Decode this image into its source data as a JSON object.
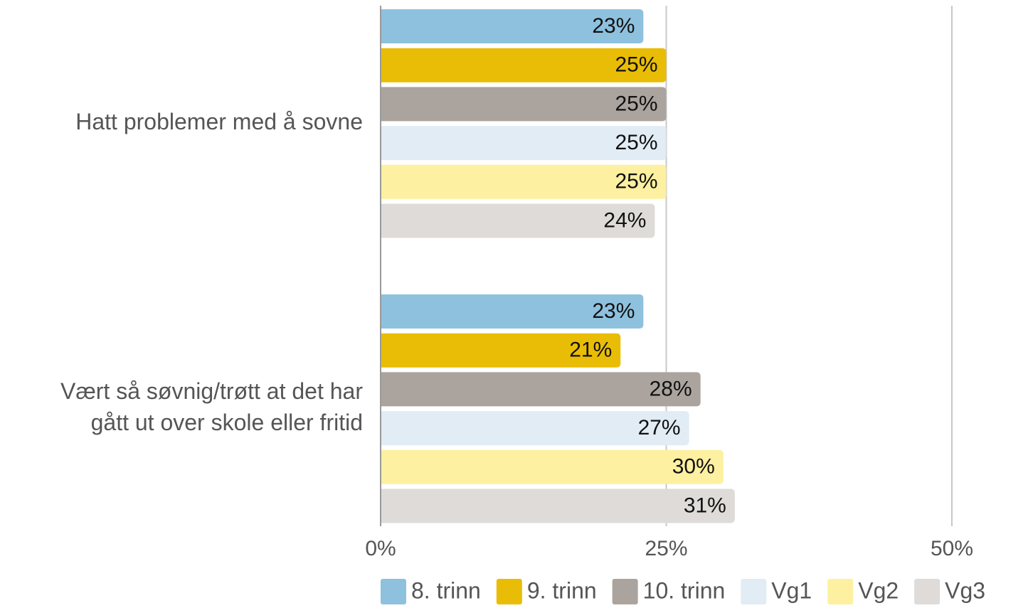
{
  "chart_data": {
    "type": "bar",
    "orientation": "horizontal",
    "categories": [
      [
        "Hatt problemer med å sovne"
      ],
      [
        "Vært så søvnig/trøtt at det har",
        "gått ut over skole eller fritid"
      ]
    ],
    "series": [
      {
        "name": "8. trinn",
        "color": "#8ec1de",
        "values": [
          23,
          23
        ],
        "value_labels": [
          "23%",
          "23%"
        ]
      },
      {
        "name": "9. trinn",
        "color": "#e9bd06",
        "values": [
          25,
          21
        ],
        "value_labels": [
          "25%",
          "21%"
        ]
      },
      {
        "name": "10. trinn",
        "color": "#aba49e",
        "values": [
          25,
          28
        ],
        "value_labels": [
          "25%",
          "28%"
        ]
      },
      {
        "name": "Vg1",
        "color": "#e1ecf5",
        "values": [
          25,
          27
        ],
        "value_labels": [
          "25%",
          "27%"
        ]
      },
      {
        "name": "Vg2",
        "color": "#fdf0a0",
        "values": [
          25,
          30
        ],
        "value_labels": [
          "25%",
          "30%"
        ]
      },
      {
        "name": "Vg3",
        "color": "#dedbd8",
        "values": [
          24,
          31
        ],
        "value_labels": [
          "24%",
          "31%"
        ]
      }
    ],
    "xlim": [
      0,
      50
    ],
    "xticks": [
      {
        "value": 0,
        "label": "0%"
      },
      {
        "value": 25,
        "label": "25%"
      },
      {
        "value": 50,
        "label": "50%"
      }
    ],
    "grid": true,
    "legend": "bottom"
  }
}
